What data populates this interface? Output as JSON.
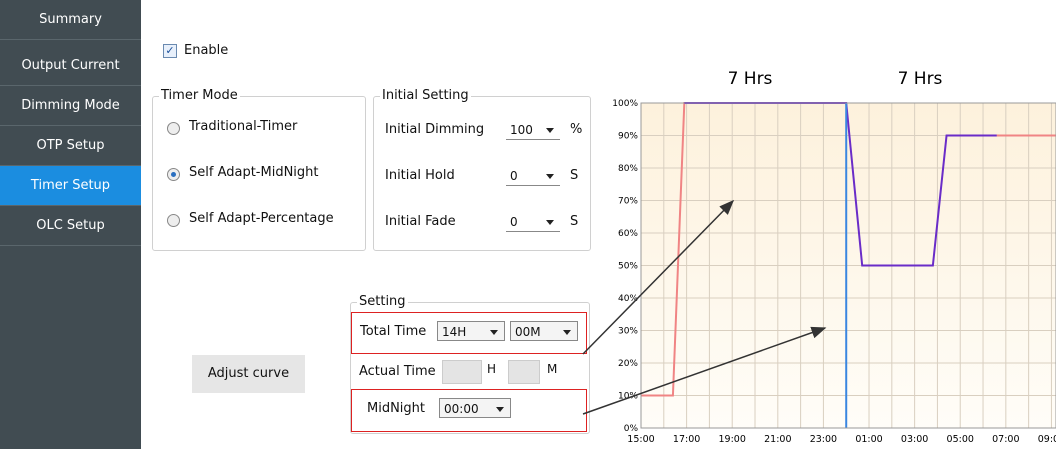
{
  "sidebar": {
    "items": [
      "Summary",
      "Output Current",
      "Dimming Mode",
      "OTP Setup",
      "Timer Setup",
      "OLC Setup"
    ],
    "selected": 4
  },
  "enable": {
    "label": "Enable",
    "checked": true
  },
  "timer_mode": {
    "title": "Timer Mode",
    "options": [
      "Traditional-Timer",
      "Self Adapt-MidNight",
      "Self Adapt-Percentage"
    ],
    "selected": 1
  },
  "initial_setting": {
    "title": "Initial Setting",
    "rows": [
      {
        "label": "Initial Dimming",
        "value": "100",
        "unit": "%"
      },
      {
        "label": "Initial Hold",
        "value": "0",
        "unit": "S"
      },
      {
        "label": "Initial Fade",
        "value": "0",
        "unit": "S"
      }
    ]
  },
  "setting": {
    "title": "Setting",
    "total_time_label": "Total Time",
    "total_hours": "14H",
    "total_minutes": "00M",
    "actual_time_label": "Actual Time",
    "hour_unit": "H",
    "minute_unit": "M",
    "midnight_label": "MidNight",
    "midnight": "00:00"
  },
  "adjust_button": "Adjust curve",
  "chart_data": {
    "type": "line",
    "annotations": [
      "7 Hrs",
      "7 Hrs"
    ],
    "xlim": [
      0,
      18.2
    ],
    "ylim": [
      0,
      100
    ],
    "xticks": [
      {
        "value": 0,
        "label": "15:00"
      },
      {
        "value": 2,
        "label": "17:00"
      },
      {
        "value": 4,
        "label": "19:00"
      },
      {
        "value": 6,
        "label": "21:00"
      },
      {
        "value": 8,
        "label": "23:00"
      },
      {
        "value": 10,
        "label": "01:00"
      },
      {
        "value": 12,
        "label": "03:00"
      },
      {
        "value": 14,
        "label": "05:00"
      },
      {
        "value": 16,
        "label": "07:00"
      },
      {
        "value": 18,
        "label": "09:00"
      }
    ],
    "xminorticks": [
      1,
      3,
      5,
      7,
      9,
      11,
      13,
      15,
      17
    ],
    "yticks": [
      {
        "value": 0,
        "label": "0%"
      },
      {
        "value": 10,
        "label": "10%"
      },
      {
        "value": 20,
        "label": "20%"
      },
      {
        "value": 30,
        "label": "30%"
      },
      {
        "value": 40,
        "label": "40%"
      },
      {
        "value": 50,
        "label": "50%"
      },
      {
        "value": 60,
        "label": "60%"
      },
      {
        "value": 70,
        "label": "70%"
      },
      {
        "value": 80,
        "label": "80%"
      },
      {
        "value": 90,
        "label": "90%"
      },
      {
        "value": 100,
        "label": "100%"
      }
    ],
    "grid": true,
    "series": [
      {
        "color": "#f08484",
        "x": [
          0,
          1.4,
          1.9,
          9,
          12,
          15.5,
          18.2
        ],
        "values": [
          10,
          10,
          100,
          100,
          null,
          90,
          90
        ]
      },
      {
        "color": "#6a2cc8",
        "x": [
          1.9,
          9,
          9.7,
          12.8,
          13.4,
          15.6
        ],
        "values": [
          100,
          100,
          50,
          50,
          90,
          90
        ]
      }
    ],
    "midnight_line": {
      "x": 9,
      "color": "#3a86e0"
    }
  }
}
